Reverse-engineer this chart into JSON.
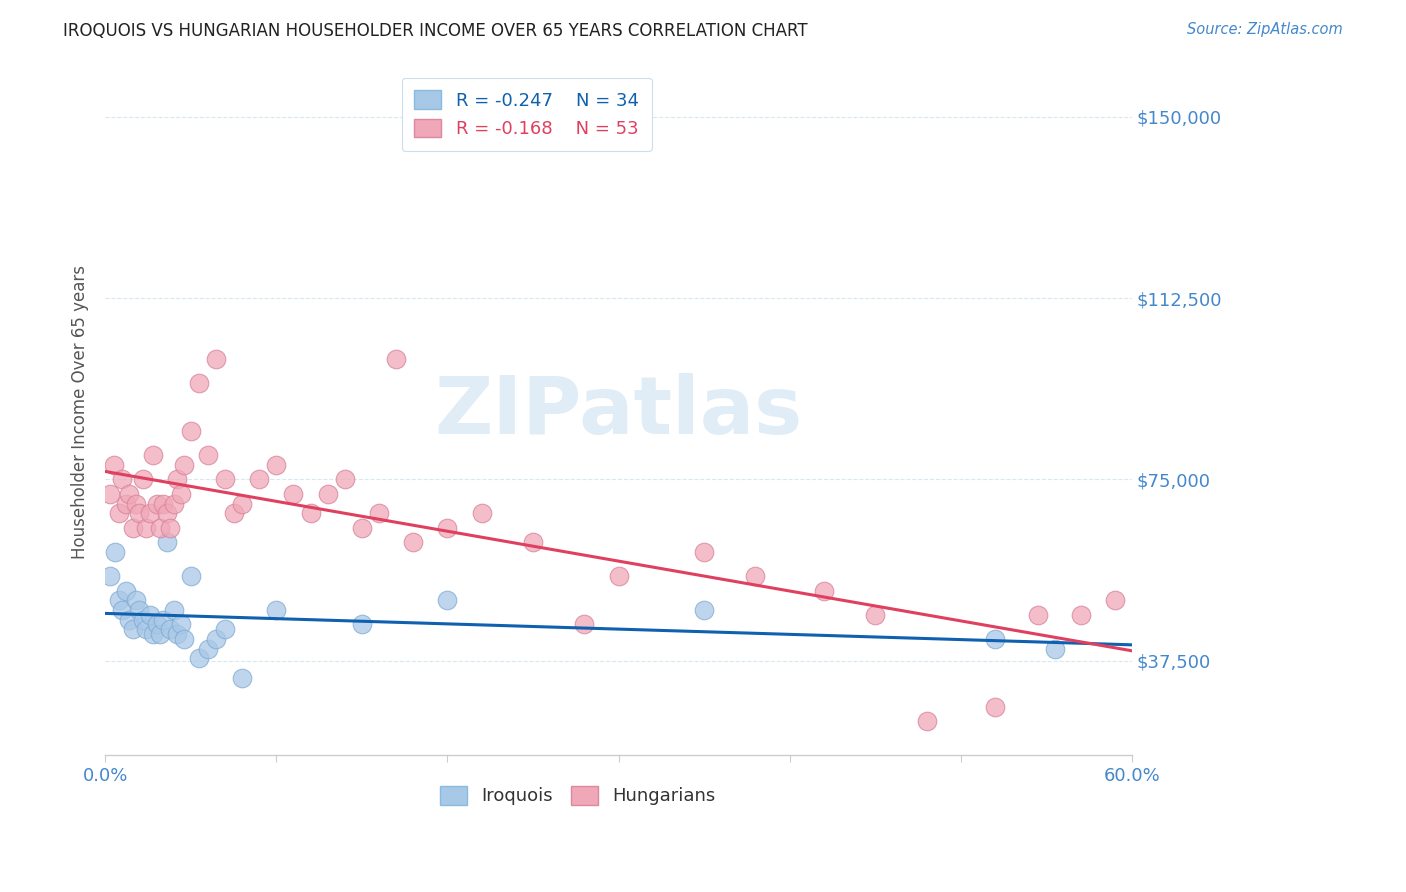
{
  "title": "IROQUOIS VS HUNGARIAN HOUSEHOLDER INCOME OVER 65 YEARS CORRELATION CHART",
  "source": "Source: ZipAtlas.com",
  "ylabel": "Householder Income Over 65 years",
  "xlim": [
    0.0,
    0.6
  ],
  "ylim": [
    18000,
    160000
  ],
  "yticks": [
    37500,
    75000,
    112500,
    150000
  ],
  "ytick_labels": [
    "$37,500",
    "$75,000",
    "$112,500",
    "$150,000"
  ],
  "xticks": [
    0.0,
    0.1,
    0.2,
    0.3,
    0.4,
    0.5,
    0.6
  ],
  "xtick_labels": [
    "0.0%",
    "",
    "",
    "",
    "",
    "",
    "60.0%"
  ],
  "iroquois_R": -0.247,
  "iroquois_N": 34,
  "hungarian_R": -0.168,
  "hungarian_N": 53,
  "iroquois_color": "#a8c8e8",
  "hungarian_color": "#f0a8b8",
  "iroquois_line_color": "#1060b0",
  "hungarian_line_color": "#e04060",
  "axis_color": "#4488cc",
  "background_color": "#ffffff",
  "grid_color": "#d8e8f0",
  "watermark": "ZIPatlas",
  "iroquois_x": [
    0.003,
    0.006,
    0.008,
    0.01,
    0.012,
    0.014,
    0.016,
    0.018,
    0.02,
    0.022,
    0.024,
    0.026,
    0.028,
    0.03,
    0.032,
    0.034,
    0.036,
    0.038,
    0.04,
    0.042,
    0.044,
    0.046,
    0.05,
    0.055,
    0.06,
    0.065,
    0.07,
    0.08,
    0.1,
    0.15,
    0.2,
    0.35,
    0.52,
    0.555
  ],
  "iroquois_y": [
    55000,
    60000,
    50000,
    48000,
    52000,
    46000,
    44000,
    50000,
    48000,
    46000,
    44000,
    47000,
    43000,
    45000,
    43000,
    46000,
    62000,
    44000,
    48000,
    43000,
    45000,
    42000,
    55000,
    38000,
    40000,
    42000,
    44000,
    34000,
    48000,
    45000,
    50000,
    48000,
    42000,
    40000
  ],
  "hungarian_x": [
    0.003,
    0.005,
    0.008,
    0.01,
    0.012,
    0.014,
    0.016,
    0.018,
    0.02,
    0.022,
    0.024,
    0.026,
    0.028,
    0.03,
    0.032,
    0.034,
    0.036,
    0.038,
    0.04,
    0.042,
    0.044,
    0.046,
    0.05,
    0.055,
    0.06,
    0.065,
    0.07,
    0.075,
    0.08,
    0.09,
    0.1,
    0.11,
    0.12,
    0.13,
    0.14,
    0.15,
    0.16,
    0.17,
    0.18,
    0.2,
    0.22,
    0.25,
    0.28,
    0.3,
    0.35,
    0.38,
    0.42,
    0.45,
    0.48,
    0.52,
    0.545,
    0.57,
    0.59
  ],
  "hungarian_y": [
    72000,
    78000,
    68000,
    75000,
    70000,
    72000,
    65000,
    70000,
    68000,
    75000,
    65000,
    68000,
    80000,
    70000,
    65000,
    70000,
    68000,
    65000,
    70000,
    75000,
    72000,
    78000,
    85000,
    95000,
    80000,
    100000,
    75000,
    68000,
    70000,
    75000,
    78000,
    72000,
    68000,
    72000,
    75000,
    65000,
    68000,
    100000,
    62000,
    65000,
    68000,
    62000,
    45000,
    55000,
    60000,
    55000,
    52000,
    47000,
    25000,
    28000,
    47000,
    47000,
    50000
  ]
}
